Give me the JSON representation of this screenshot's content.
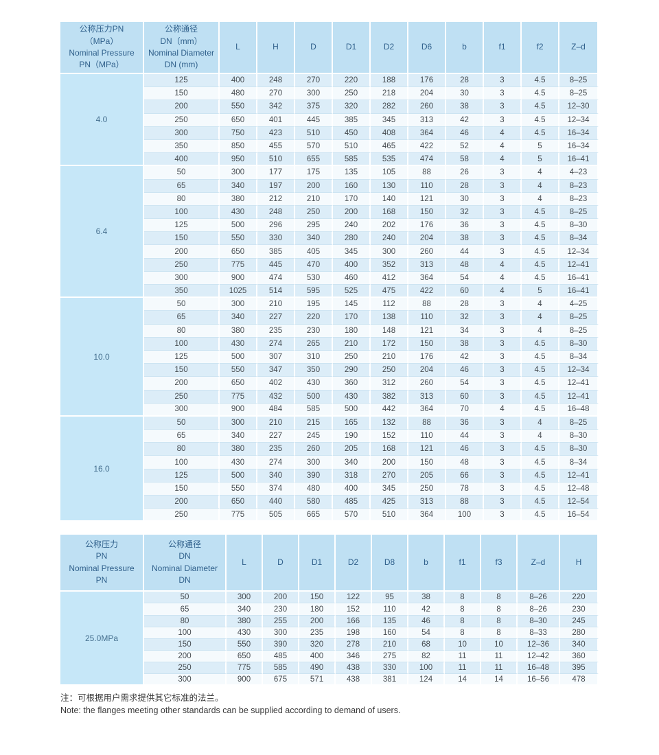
{
  "colors": {
    "header_bg": "#bfe0f3",
    "group_cell_bg": "#c6e7f8",
    "row_odd_bg": "#dcedf8",
    "row_even_bg": "#f5fafd",
    "header_text": "#31618c",
    "data_text": "#454b50"
  },
  "table1": {
    "pressure_header": "公称压力PN\n（MPa）\nNominal Pressure\nPN（MPa）",
    "dn_header": "公称通径\nDN（mm）\nNominal Diameter\nDN (mm)",
    "columns": [
      "L",
      "H",
      "D",
      "D1",
      "D2",
      "D6",
      "b",
      "f1",
      "f2",
      "Z–d"
    ],
    "groups": [
      {
        "pressure": "4.0",
        "rows": [
          [
            "125",
            "400",
            "248",
            "270",
            "220",
            "188",
            "176",
            "28",
            "3",
            "4.5",
            "8–25"
          ],
          [
            "150",
            "480",
            "270",
            "300",
            "250",
            "218",
            "204",
            "30",
            "3",
            "4.5",
            "8–25"
          ],
          [
            "200",
            "550",
            "342",
            "375",
            "320",
            "282",
            "260",
            "38",
            "3",
            "4.5",
            "12–30"
          ],
          [
            "250",
            "650",
            "401",
            "445",
            "385",
            "345",
            "313",
            "42",
            "3",
            "4.5",
            "12–34"
          ],
          [
            "300",
            "750",
            "423",
            "510",
            "450",
            "408",
            "364",
            "46",
            "4",
            "4.5",
            "16–34"
          ],
          [
            "350",
            "850",
            "455",
            "570",
            "510",
            "465",
            "422",
            "52",
            "4",
            "5",
            "16–34"
          ],
          [
            "400",
            "950",
            "510",
            "655",
            "585",
            "535",
            "474",
            "58",
            "4",
            "5",
            "16–41"
          ]
        ]
      },
      {
        "pressure": "6.4",
        "rows": [
          [
            "50",
            "300",
            "177",
            "175",
            "135",
            "105",
            "88",
            "26",
            "3",
            "4",
            "4–23"
          ],
          [
            "65",
            "340",
            "197",
            "200",
            "160",
            "130",
            "110",
            "28",
            "3",
            "4",
            "8–23"
          ],
          [
            "80",
            "380",
            "212",
            "210",
            "170",
            "140",
            "121",
            "30",
            "3",
            "4",
            "8–23"
          ],
          [
            "100",
            "430",
            "248",
            "250",
            "200",
            "168",
            "150",
            "32",
            "3",
            "4.5",
            "8–25"
          ],
          [
            "125",
            "500",
            "296",
            "295",
            "240",
            "202",
            "176",
            "36",
            "3",
            "4.5",
            "8–30"
          ],
          [
            "150",
            "550",
            "330",
            "340",
            "280",
            "240",
            "204",
            "38",
            "3",
            "4.5",
            "8–34"
          ],
          [
            "200",
            "650",
            "385",
            "405",
            "345",
            "300",
            "260",
            "44",
            "3",
            "4.5",
            "12–34"
          ],
          [
            "250",
            "775",
            "445",
            "470",
            "400",
            "352",
            "313",
            "48",
            "4",
            "4.5",
            "12–41"
          ],
          [
            "300",
            "900",
            "474",
            "530",
            "460",
            "412",
            "364",
            "54",
            "4",
            "4.5",
            "16–41"
          ],
          [
            "350",
            "1025",
            "514",
            "595",
            "525",
            "475",
            "422",
            "60",
            "4",
            "5",
            "16–41"
          ]
        ]
      },
      {
        "pressure": "10.0",
        "rows": [
          [
            "50",
            "300",
            "210",
            "195",
            "145",
            "112",
            "88",
            "28",
            "3",
            "4",
            "4–25"
          ],
          [
            "65",
            "340",
            "227",
            "220",
            "170",
            "138",
            "110",
            "32",
            "3",
            "4",
            "8–25"
          ],
          [
            "80",
            "380",
            "235",
            "230",
            "180",
            "148",
            "121",
            "34",
            "3",
            "4",
            "8–25"
          ],
          [
            "100",
            "430",
            "274",
            "265",
            "210",
            "172",
            "150",
            "38",
            "3",
            "4.5",
            "8–30"
          ],
          [
            "125",
            "500",
            "307",
            "310",
            "250",
            "210",
            "176",
            "42",
            "3",
            "4.5",
            "8–34"
          ],
          [
            "150",
            "550",
            "347",
            "350",
            "290",
            "250",
            "204",
            "46",
            "3",
            "4.5",
            "12–34"
          ],
          [
            "200",
            "650",
            "402",
            "430",
            "360",
            "312",
            "260",
            "54",
            "3",
            "4.5",
            "12–41"
          ],
          [
            "250",
            "775",
            "432",
            "500",
            "430",
            "382",
            "313",
            "60",
            "3",
            "4.5",
            "12–41"
          ],
          [
            "300",
            "900",
            "484",
            "585",
            "500",
            "442",
            "364",
            "70",
            "4",
            "4.5",
            "16–48"
          ]
        ]
      },
      {
        "pressure": "16.0",
        "rows": [
          [
            "50",
            "300",
            "210",
            "215",
            "165",
            "132",
            "88",
            "36",
            "3",
            "4",
            "8–25"
          ],
          [
            "65",
            "340",
            "227",
            "245",
            "190",
            "152",
            "110",
            "44",
            "3",
            "4",
            "8–30"
          ],
          [
            "80",
            "380",
            "235",
            "260",
            "205",
            "168",
            "121",
            "46",
            "3",
            "4.5",
            "8–30"
          ],
          [
            "100",
            "430",
            "274",
            "300",
            "340",
            "200",
            "150",
            "48",
            "3",
            "4.5",
            "8–34"
          ],
          [
            "125",
            "500",
            "340",
            "390",
            "318",
            "270",
            "205",
            "66",
            "3",
            "4.5",
            "12–41"
          ],
          [
            "150",
            "550",
            "374",
            "480",
            "400",
            "345",
            "250",
            "78",
            "3",
            "4.5",
            "12–48"
          ],
          [
            "200",
            "650",
            "440",
            "580",
            "485",
            "425",
            "313",
            "88",
            "3",
            "4.5",
            "12–54"
          ],
          [
            "250",
            "775",
            "505",
            "665",
            "570",
            "510",
            "364",
            "100",
            "3",
            "4.5",
            "16–54"
          ]
        ]
      }
    ]
  },
  "table2": {
    "pressure_header": "公称压力\nPN\nNominal Pressure\nPN",
    "dn_header": "公称通径\nDN\nNominal Diameter\nDN",
    "columns": [
      "L",
      "D",
      "D1",
      "D2",
      "D8",
      "b",
      "f1",
      "f3",
      "Z–d",
      "H"
    ],
    "groups": [
      {
        "pressure": "25.0MPa",
        "rows": [
          [
            "50",
            "300",
            "200",
            "150",
            "122",
            "95",
            "38",
            "8",
            "8",
            "8–26",
            "220"
          ],
          [
            "65",
            "340",
            "230",
            "180",
            "152",
            "110",
            "42",
            "8",
            "8",
            "8–26",
            "230"
          ],
          [
            "80",
            "380",
            "255",
            "200",
            "166",
            "135",
            "46",
            "8",
            "8",
            "8–30",
            "245"
          ],
          [
            "100",
            "430",
            "300",
            "235",
            "198",
            "160",
            "54",
            "8",
            "8",
            "8–33",
            "280"
          ],
          [
            "150",
            "550",
            "390",
            "320",
            "278",
            "210",
            "68",
            "10",
            "10",
            "12–36",
            "340"
          ],
          [
            "200",
            "650",
            "485",
            "400",
            "346",
            "275",
            "82",
            "11",
            "11",
            "12–42",
            "360"
          ],
          [
            "250",
            "775",
            "585",
            "490",
            "438",
            "330",
            "100",
            "11",
            "11",
            "16–48",
            "395"
          ],
          [
            "300",
            "900",
            "675",
            "571",
            "438",
            "381",
            "124",
            "14",
            "14",
            "16–56",
            "478"
          ]
        ]
      }
    ]
  },
  "note": {
    "zh": "注：可根据用户需求提供其它标准的法兰。",
    "en": "Note: the flanges meeting other standards can be supplied according to demand of users."
  }
}
